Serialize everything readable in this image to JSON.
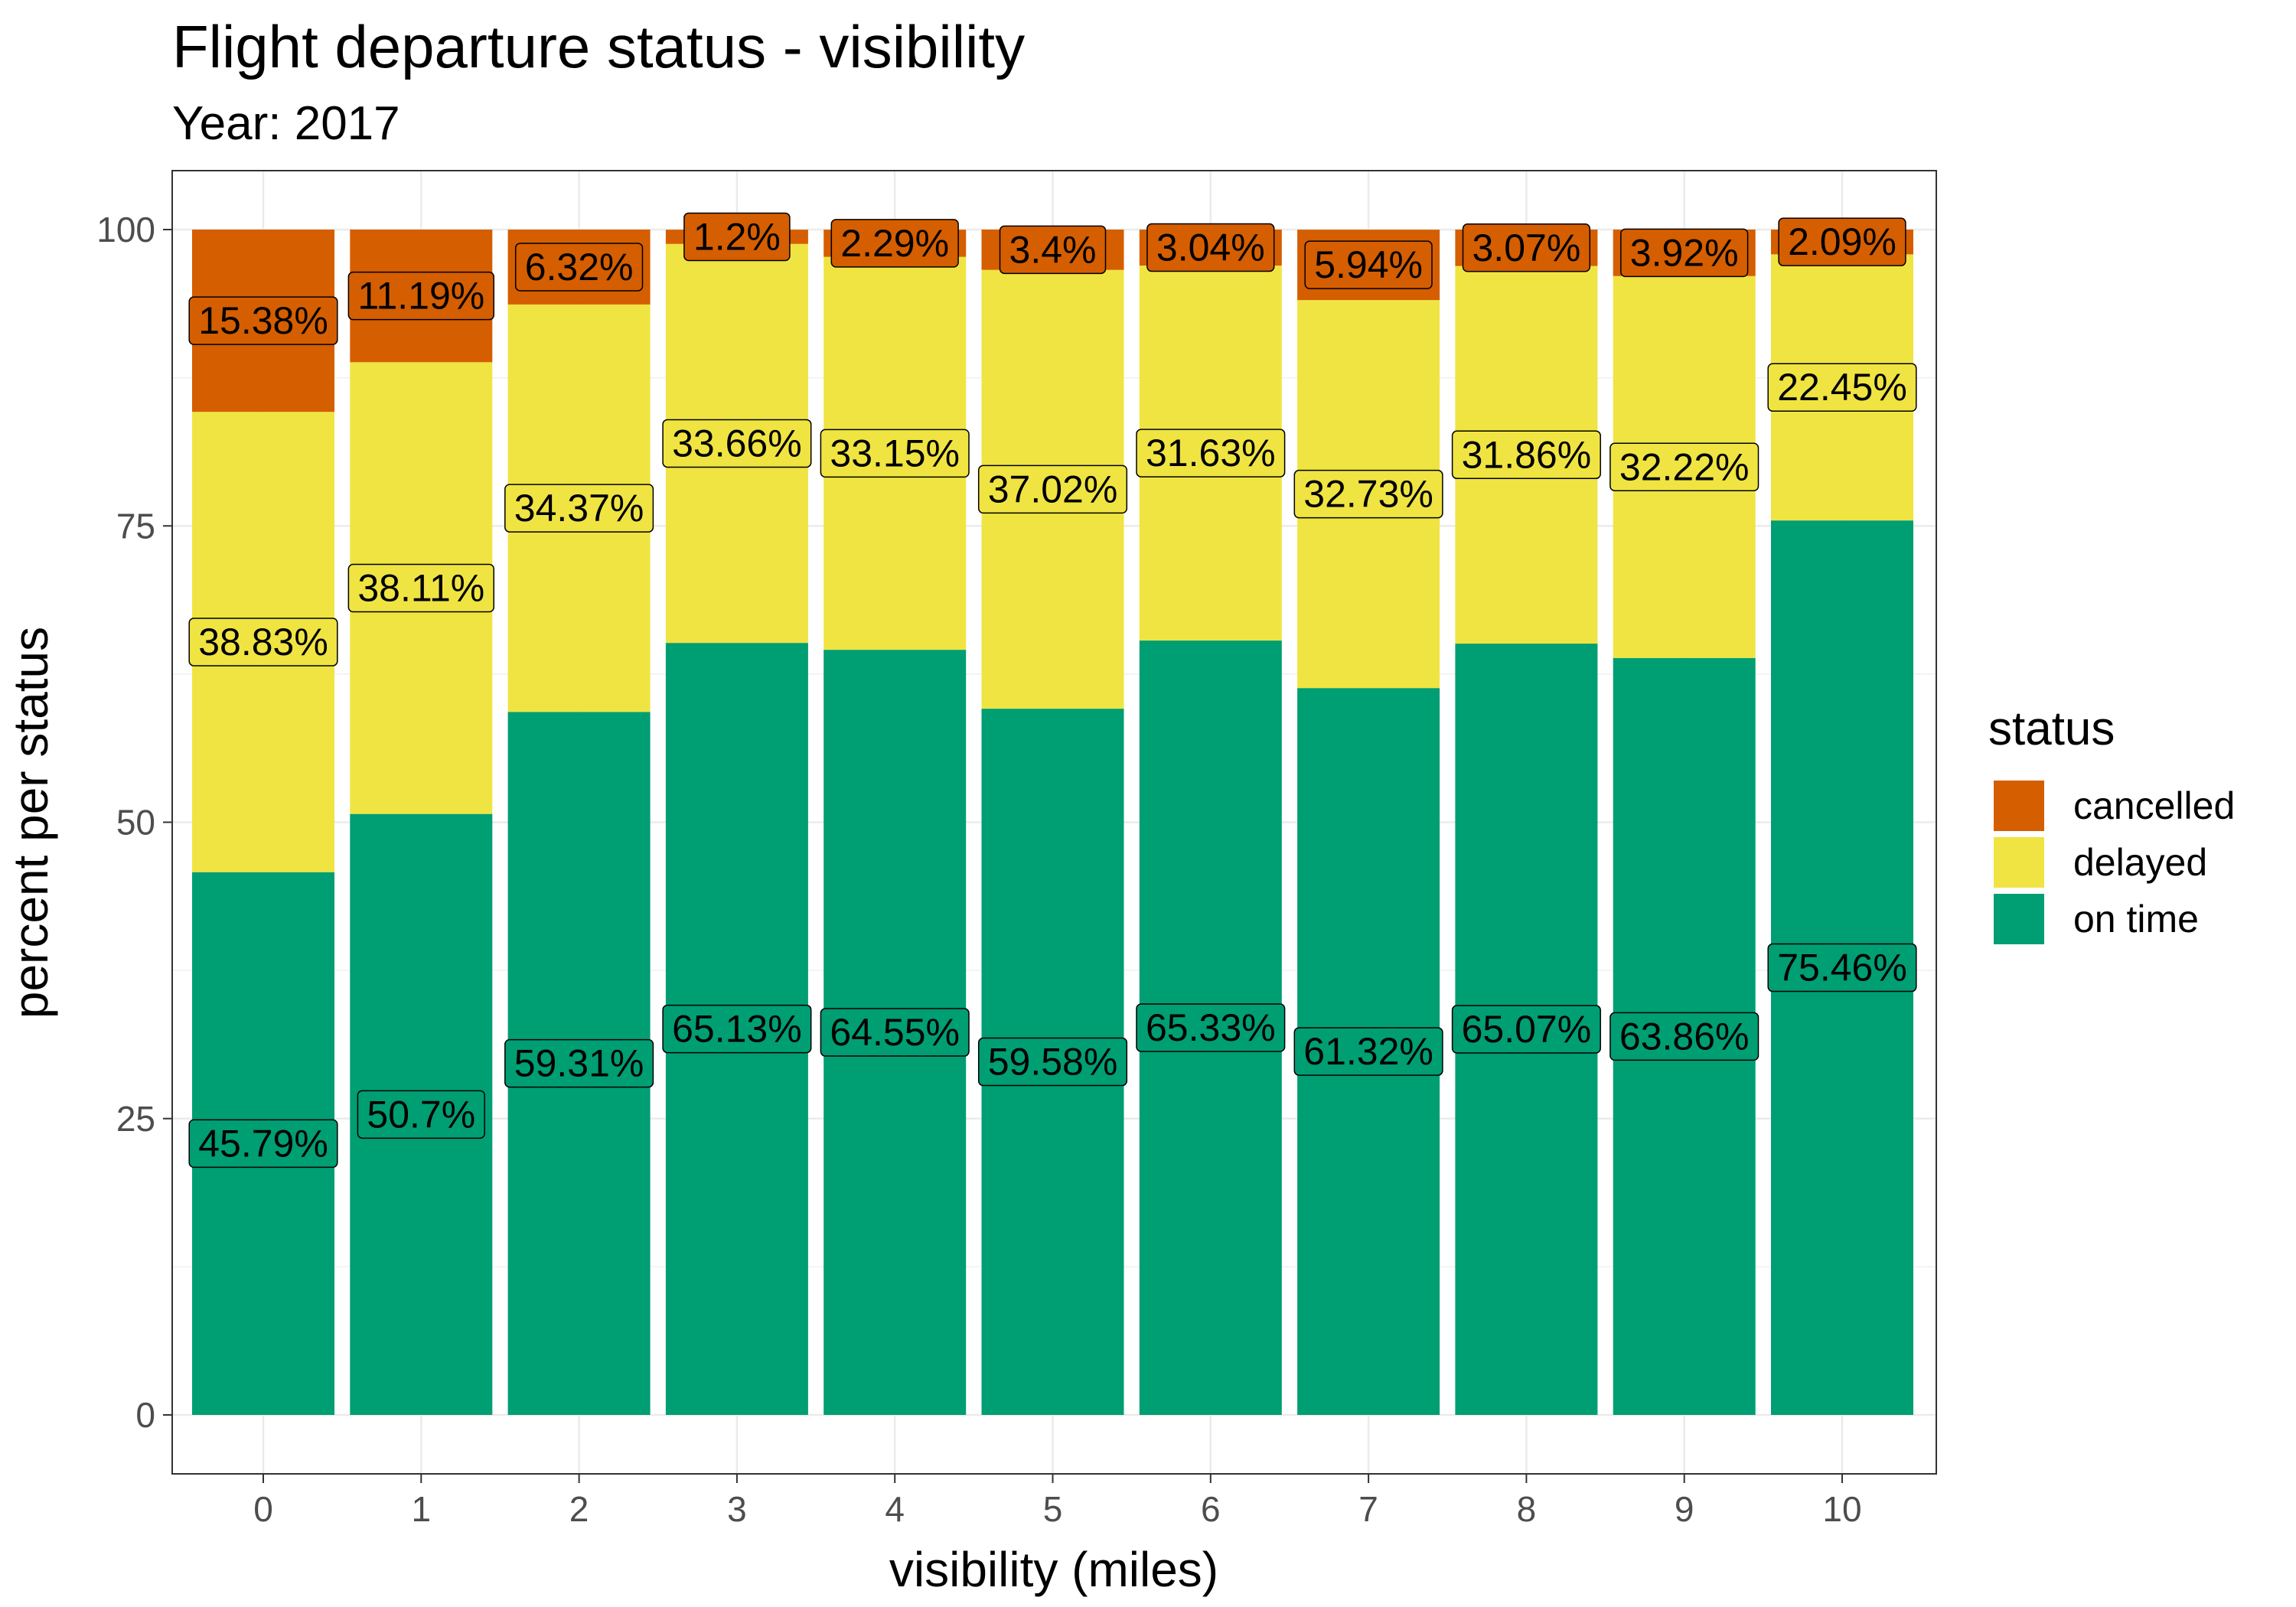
{
  "title": "Flight departure status - visibility",
  "subtitle": "Year: 2017",
  "chart_data": {
    "type": "bar",
    "stacked": true,
    "percent_stacked": true,
    "xlabel": "visibility (miles)",
    "ylabel": "percent per status",
    "ylim": [
      0,
      105
    ],
    "y_ticks": [
      0,
      25,
      50,
      75,
      100
    ],
    "grid": true,
    "legend_position": "right",
    "legend_title": "status",
    "categories": [
      "0",
      "1",
      "2",
      "3",
      "4",
      "5",
      "6",
      "7",
      "8",
      "9",
      "10"
    ],
    "series": [
      {
        "name": "on time",
        "color": "#009E73",
        "values": [
          45.79,
          50.7,
          59.31,
          65.13,
          64.55,
          59.58,
          65.33,
          61.32,
          65.07,
          63.86,
          75.46
        ]
      },
      {
        "name": "delayed",
        "color": "#F0E442",
        "values": [
          38.83,
          38.11,
          34.37,
          33.66,
          33.15,
          37.02,
          31.63,
          32.73,
          31.86,
          32.22,
          22.45
        ]
      },
      {
        "name": "cancelled",
        "color": "#D55E00",
        "values": [
          15.38,
          11.19,
          6.32,
          1.2,
          2.29,
          3.4,
          3.04,
          5.94,
          3.07,
          3.92,
          2.09
        ]
      }
    ],
    "legend_order": [
      "cancelled",
      "delayed",
      "on time"
    ],
    "labels": {
      "on time": [
        "45.79%",
        "50.7%",
        "59.31%",
        "65.13%",
        "64.55%",
        "59.58%",
        "65.33%",
        "61.32%",
        "65.07%",
        "63.86%",
        "75.46%"
      ],
      "delayed": [
        "38.83%",
        "38.11%",
        "34.37%",
        "33.66%",
        "33.15%",
        "37.02%",
        "31.63%",
        "32.73%",
        "31.86%",
        "32.22%",
        "22.45%"
      ],
      "cancelled": [
        "15.38%",
        "11.19%",
        "6.32%",
        "1.2%",
        "2.29%",
        "3.4%",
        "3.04%",
        "5.94%",
        "3.07%",
        "3.92%",
        "2.09%"
      ]
    }
  }
}
